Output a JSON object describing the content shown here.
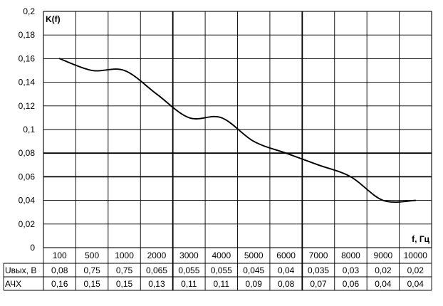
{
  "chart_data": {
    "type": "line",
    "title": "",
    "ylabel": "K(f)",
    "xlabel": "f, Гц",
    "ylim": [
      0,
      0.2
    ],
    "yticks": [
      "0",
      "0,02",
      "0,04",
      "0,06",
      "0,08",
      "0,1",
      "0,12",
      "0,14",
      "0,16",
      "0,18",
      "0,2"
    ],
    "categories": [
      "100",
      "500",
      "1000",
      "2000",
      "3000",
      "4000",
      "5000",
      "6000",
      "7000",
      "8000",
      "9000",
      "10000"
    ],
    "values": [
      0.16,
      0.15,
      0.15,
      0.13,
      0.11,
      0.11,
      0.09,
      0.08,
      0.07,
      0.06,
      0.04,
      0.04
    ],
    "grid": true,
    "line_color": "#000000",
    "table": {
      "rows": [
        {
          "label": "Uвых, В",
          "values": [
            "0,08",
            "0,75",
            "0,75",
            "0,065",
            "0,055",
            "0,055",
            "0,045",
            "0,04",
            "0,035",
            "0,03",
            "0,02",
            "0,02"
          ]
        },
        {
          "label": "АЧХ",
          "values": [
            "0,16",
            "0,15",
            "0,15",
            "0,13",
            "0,11",
            "0,11",
            "0,09",
            "0,08",
            "0,07",
            "0,06",
            "0,04",
            "0,04"
          ]
        }
      ]
    }
  }
}
